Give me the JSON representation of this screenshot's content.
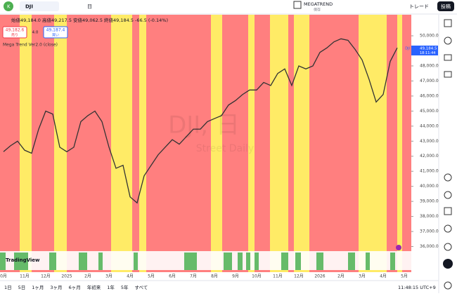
{
  "toolbar": {
    "symbol": "DJI",
    "interval": "日",
    "layout_name": "MEGATREND",
    "save": "保存",
    "trade": "トレード",
    "publish": "投稿"
  },
  "legend": {
    "ohlc": "始値49,184.0 高値49,217.5 安値49,062.5 終値49,184.5 -66.5 (-0.14%)",
    "sell_price": "49,182.6",
    "sell": "売り",
    "spread": "4.0",
    "buy_price": "49,187.4",
    "buy": "買い",
    "indicator": "Mega Trend Ver2.0 (close)"
  },
  "watermark": {
    "title": "DJI, 日",
    "subtitle": "Street Daily"
  },
  "price_label": {
    "symbol": "DJI",
    "price": "49,184.5",
    "countdown": "18:11:44"
  },
  "logo": "TradingView",
  "chart_data": {
    "type": "line",
    "color": "#333333",
    "categories": [
      "0月",
      null,
      null,
      "11月",
      null,
      null,
      "12月",
      null,
      null,
      "2025",
      null,
      null,
      "2月",
      null,
      null,
      "3月",
      null,
      null,
      "4月",
      null,
      null,
      "5月",
      null,
      null,
      "6月",
      null,
      null,
      "7月",
      null,
      null,
      "8月",
      null,
      null,
      "9月",
      null,
      null,
      "10月",
      null,
      null,
      "11月",
      null,
      null,
      "12月",
      null,
      null,
      "2026",
      null,
      null,
      "2月",
      null,
      null,
      "3月",
      null,
      null,
      "4月",
      null,
      null,
      "5月"
    ],
    "values": [
      42300,
      42700,
      43000,
      42400,
      42200,
      43800,
      45000,
      44800,
      42600,
      42300,
      42600,
      44300,
      44700,
      45000,
      44300,
      42600,
      41200,
      41400,
      39300,
      38900,
      40700,
      41400,
      42100,
      42600,
      43100,
      42800,
      43300,
      43800,
      43800,
      44300,
      44500,
      44700,
      45400,
      45700,
      46100,
      46400,
      46400,
      46900,
      46700,
      47500,
      47800,
      46700,
      48000,
      47800,
      48000,
      48900,
      49200,
      49600,
      49800,
      49700,
      49100,
      48400,
      47100,
      45600,
      46100,
      48300,
      49200,
      null
    ],
    "ylim": [
      34300,
      51400
    ],
    "yticks": [
      {
        "value": 36000,
        "label": "36,000.0"
      },
      {
        "value": 37000,
        "label": "37,000.0"
      },
      {
        "value": 38000,
        "label": "38,000.0"
      },
      {
        "value": 39000,
        "label": "39,000.0"
      },
      {
        "value": 40000,
        "label": "40,000.0"
      },
      {
        "value": 41000,
        "label": "41,000.0"
      },
      {
        "value": 42000,
        "label": "42,000.0"
      },
      {
        "value": 43000,
        "label": "43,000.0"
      },
      {
        "value": 44000,
        "label": "44,000.0"
      },
      {
        "value": 45000,
        "label": "45,000.0"
      },
      {
        "value": 46000,
        "label": "46,000.0"
      },
      {
        "value": 47000,
        "label": "47,000.0"
      },
      {
        "value": 48000,
        "label": "48,000.0"
      },
      {
        "value": 50000,
        "label": "50,000.0"
      }
    ]
  },
  "ranges": [
    "1日",
    "5日",
    "1ヶ月",
    "3ヶ月",
    "6ヶ月",
    "年初来",
    "1年",
    "5年",
    "すべて"
  ],
  "clock": "11:48:15 UTC+9"
}
